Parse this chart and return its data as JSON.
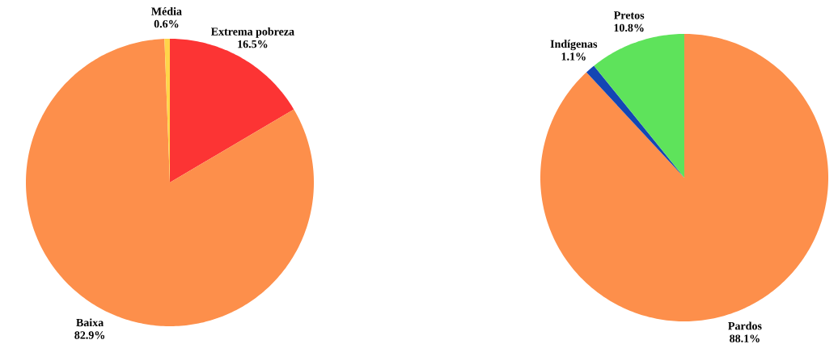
{
  "chart_data": [
    {
      "type": "pie",
      "categories": [
        "Extrema pobreza",
        "Baixa",
        "Média"
      ],
      "values": [
        16.5,
        82.9,
        0.6
      ],
      "colors": [
        "#fc3434",
        "#fd8f4b",
        "#ffd54a"
      ],
      "value_labels": [
        "16.5%",
        "82.9%",
        "0.6%"
      ]
    },
    {
      "type": "pie",
      "categories": [
        "Pardos",
        "Indígenas",
        "Pretos"
      ],
      "values": [
        88.1,
        1.1,
        10.8
      ],
      "colors": [
        "#fd8f4b",
        "#1446b4",
        "#5ee35b"
      ],
      "value_labels": [
        "88.1%",
        "1.1%",
        "10.8%"
      ]
    }
  ]
}
